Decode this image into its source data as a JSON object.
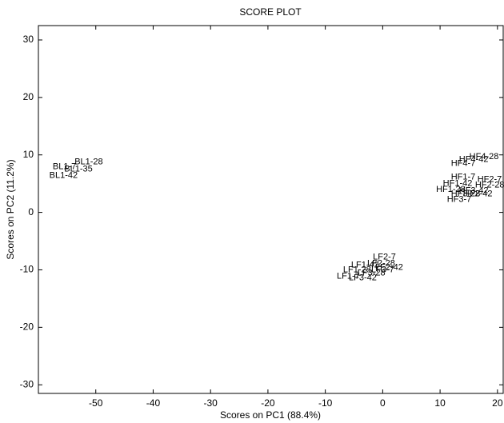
{
  "chart_data": {
    "type": "scatter",
    "title": "SCORE PLOT",
    "x_label": "Scores on PC1 (88.4%)",
    "y_label": "Scores on PC2 (11.2%)",
    "xlim": [
      -60,
      21
    ],
    "ylim": [
      -31.5,
      32.5
    ],
    "xticks": [
      -50,
      -40,
      -30,
      -20,
      -10,
      0,
      10,
      20
    ],
    "yticks": [
      -30,
      -20,
      -10,
      0,
      10,
      20,
      30
    ],
    "series": [
      {
        "color": "#555555",
        "labels": [
          "BL1-28",
          "BL1-35",
          "BL1-7",
          "BL1-42"
        ],
        "x": [
          -53.7,
          -55.5,
          -57.5,
          -58.1
        ],
        "values": [
          8.75,
          7.5,
          7.9,
          6.4
        ]
      },
      {
        "color": "#7ac943",
        "labels": [
          "HF4-7",
          "HF4-42",
          "HF4-28"
        ],
        "x": [
          11.9,
          13.3,
          15.1
        ],
        "values": [
          8.5,
          9.2,
          9.7
        ]
      },
      {
        "color": "#e8262a",
        "labels": [
          "HF1-28",
          "HF1-42",
          "HF1-7"
        ],
        "x": [
          9.3,
          10.5,
          11.9
        ],
        "values": [
          4.0,
          5.0,
          6.1
        ]
      },
      {
        "color": "#2b3b9a",
        "labels": [
          "HF2-42",
          "HF2-28",
          "HF2-7"
        ],
        "x": [
          14,
          16.1,
          16.5
        ],
        "values": [
          3.2,
          4.7,
          5.7
        ]
      },
      {
        "color": "#1a7a3a",
        "labels": [
          "HF3-7",
          "HF3-28",
          "HF3-42"
        ],
        "x": [
          11.2,
          11.9,
          13.3
        ],
        "values": [
          2.2,
          3.2,
          3.75
        ]
      },
      {
        "color": "#3cb6e3",
        "labels": [
          "LF1-7",
          "LF1-28",
          "LF1-42"
        ],
        "x": [
          -8,
          -6.9,
          -5.5
        ],
        "values": [
          -11.1,
          -10,
          -9.2
        ]
      },
      {
        "color": "#f07b2a",
        "labels": [
          "LF3-42",
          "LF3-28",
          "LF3-7"
        ],
        "x": [
          -5.9,
          -4.4,
          -2
        ],
        "values": [
          -11.4,
          -10.6,
          -10
        ]
      },
      {
        "color": "#9b4f9e",
        "labels": [
          "LF2-28",
          "LF2-42",
          "LF2-7"
        ],
        "x": [
          -2.7,
          -1.3,
          -1.7
        ],
        "values": [
          -8.9,
          -9.6,
          -7.8
        ]
      }
    ]
  }
}
